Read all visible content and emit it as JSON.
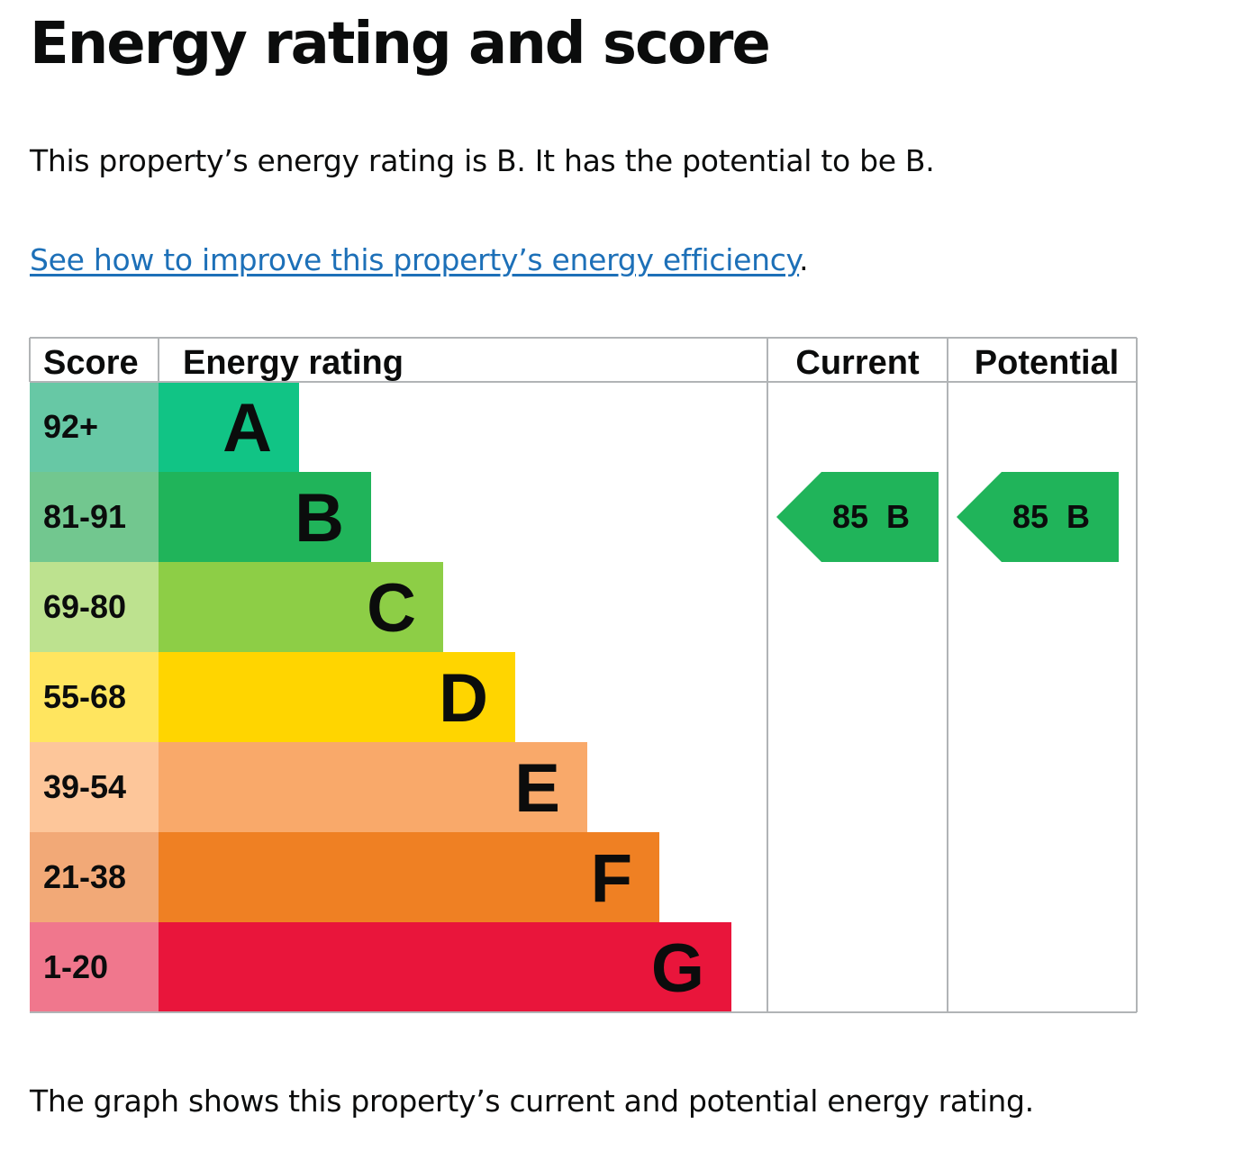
{
  "page_title": "Energy rating and score",
  "intro_text": "This property’s energy rating is B. It has the potential to be B.",
  "improve_link": {
    "text": "See how to improve this property’s energy efficiency",
    "suffix": "."
  },
  "caption": "The graph shows this property’s current and potential energy rating.",
  "chart_data": {
    "type": "table",
    "headers": {
      "score": "Score",
      "rating": "Energy rating",
      "current": "Current",
      "potential": "Potential"
    },
    "bands": [
      {
        "score": "92+",
        "letter": "A",
        "color": "#11c485",
        "score_color": "#67c8a5"
      },
      {
        "score": "81-91",
        "letter": "B",
        "color": "#20b45a",
        "score_color": "#72c78f"
      },
      {
        "score": "69-80",
        "letter": "C",
        "color": "#8dce46",
        "score_color": "#bde28f"
      },
      {
        "score": "55-68",
        "letter": "D",
        "color": "#ffd500",
        "score_color": "#ffe55f"
      },
      {
        "score": "39-54",
        "letter": "E",
        "color": "#f9a96a",
        "score_color": "#fdc69a"
      },
      {
        "score": "21-38",
        "letter": "F",
        "color": "#ef8023",
        "score_color": "#f2a977"
      },
      {
        "score": "1-20",
        "letter": "G",
        "color": "#e9153b",
        "score_color": "#f0778d"
      }
    ],
    "current": {
      "score": 85,
      "rating": "B",
      "label": "85  B",
      "color": "#20b45a"
    },
    "potential": {
      "score": 85,
      "rating": "B",
      "label": "85  B",
      "color": "#20b45a"
    }
  }
}
